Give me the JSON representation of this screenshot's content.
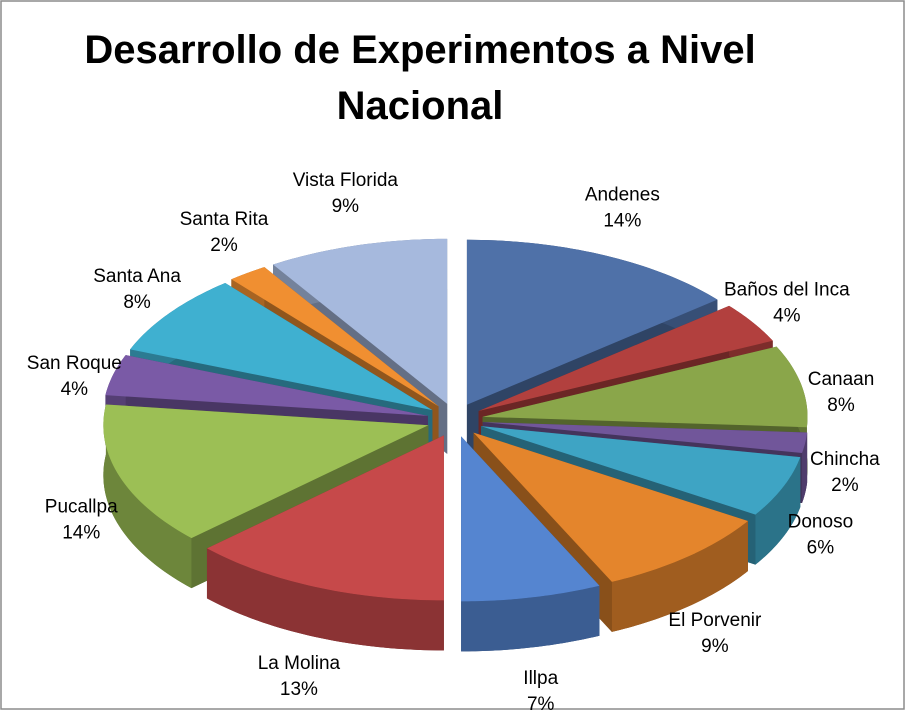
{
  "chart_data": {
    "type": "pie",
    "title": "Desarrollo de Experimentos a Nivel Nacional",
    "categories": [
      "Andenes",
      "Baños del Inca",
      "Canaan",
      "Chincha",
      "Donoso",
      "El Porvenir",
      "Illpa",
      "La Molina",
      "Pucallpa",
      "San Roque",
      "Santa Ana",
      "Santa Rita",
      "Vista Florida"
    ],
    "values": [
      14,
      4,
      8,
      2,
      6,
      9,
      7,
      13,
      14,
      4,
      8,
      2,
      9
    ],
    "value_labels": [
      "14%",
      "4%",
      "8%",
      "2%",
      "6%",
      "9%",
      "7%",
      "13%",
      "14%",
      "4%",
      "8%",
      "2%",
      "9%"
    ],
    "colors": [
      "#4f71a8",
      "#b2403e",
      "#8aa64a",
      "#71569a",
      "#3ea4c4",
      "#e4852c",
      "#5585d0",
      "#c6494a",
      "#9cbf55",
      "#7a5aa6",
      "#3fb0d0",
      "#f08f31",
      "#a6b9dd"
    ]
  }
}
